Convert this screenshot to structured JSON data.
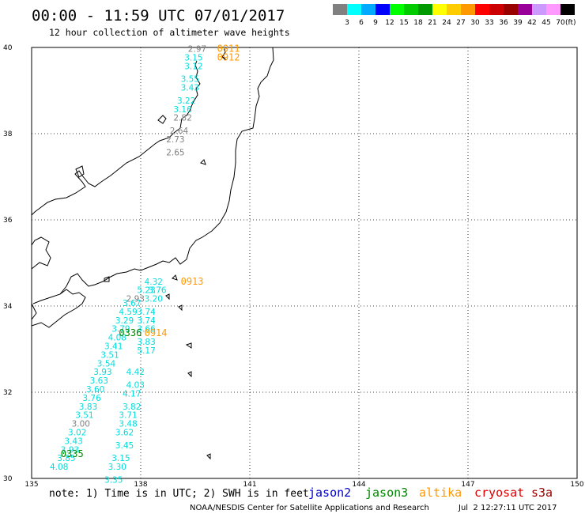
{
  "header": {
    "title": "00:00 - 11:59 UTC 07/01/2017",
    "subtitle": "12 hour collection of altimeter wave heights"
  },
  "legend": {
    "unit": "(ft)",
    "bins": [
      {
        "color": "#808080",
        "label": "3"
      },
      {
        "color": "#00ffff",
        "label": "6"
      },
      {
        "color": "#00aaff",
        "label": "9"
      },
      {
        "color": "#0000ff",
        "label": "12"
      },
      {
        "color": "#00ff00",
        "label": "15"
      },
      {
        "color": "#00cc00",
        "label": "18"
      },
      {
        "color": "#009900",
        "label": "21"
      },
      {
        "color": "#ffff00",
        "label": "24"
      },
      {
        "color": "#ffcc00",
        "label": "27"
      },
      {
        "color": "#ff9900",
        "label": "30"
      },
      {
        "color": "#ff0000",
        "label": "33"
      },
      {
        "color": "#cc0000",
        "label": "36"
      },
      {
        "color": "#990000",
        "label": "39"
      },
      {
        "color": "#990099",
        "label": "42"
      },
      {
        "color": "#cc99ff",
        "label": "45"
      },
      {
        "color": "#ff99ff",
        "label": "70"
      },
      {
        "color": "#000000",
        "label": ""
      }
    ]
  },
  "map": {
    "lon_range": [
      135,
      150
    ],
    "lat_range": [
      30,
      40
    ],
    "lon_ticks": [
      "135",
      "138",
      "141",
      "144",
      "147",
      "150"
    ],
    "lat_ticks": [
      "30",
      "32",
      "34",
      "36",
      "38",
      "40"
    ]
  },
  "colors": {
    "swh_low": "#808080",
    "swh_mid": "#00dddd",
    "jason2": "#0000cc",
    "jason3": "#008800",
    "altika": "#ff9900",
    "cryosat": "#dd0000",
    "s3a": "#990000"
  },
  "tracks": [
    {
      "sat": "altika",
      "time": "0911",
      "lon": 140.1,
      "lat": 39.9
    },
    {
      "sat": "altika",
      "time": "0912",
      "lon": 140.1,
      "lat": 39.7
    },
    {
      "sat": "altika",
      "time": "0913",
      "lon": 139.1,
      "lat": 34.5
    },
    {
      "sat": "altika",
      "time": "0914",
      "lon": 138.1,
      "lat": 33.3
    },
    {
      "sat": "jason3",
      "time": "0336",
      "lon": 137.4,
      "lat": 33.3
    },
    {
      "sat": "jason3",
      "time": "0335",
      "lon": 135.8,
      "lat": 30.5
    }
  ],
  "swh_values": [
    {
      "v": "2.97",
      "lon": 139.3,
      "lat": 39.9,
      "c": "swh_low"
    },
    {
      "v": "3.15",
      "lon": 139.2,
      "lat": 39.7,
      "c": "swh_mid"
    },
    {
      "v": "3.12",
      "lon": 139.2,
      "lat": 39.5,
      "c": "swh_mid"
    },
    {
      "v": "3.55",
      "lon": 139.1,
      "lat": 39.2,
      "c": "swh_mid"
    },
    {
      "v": "3.43",
      "lon": 139.1,
      "lat": 39.0,
      "c": "swh_mid"
    },
    {
      "v": "3.22",
      "lon": 139.0,
      "lat": 38.7,
      "c": "swh_mid"
    },
    {
      "v": "3.16",
      "lon": 138.9,
      "lat": 38.5,
      "c": "swh_mid"
    },
    {
      "v": "2.82",
      "lon": 138.9,
      "lat": 38.3,
      "c": "swh_low"
    },
    {
      "v": "2.64",
      "lon": 138.8,
      "lat": 38.0,
      "c": "swh_low"
    },
    {
      "v": "2.73",
      "lon": 138.7,
      "lat": 37.8,
      "c": "swh_low"
    },
    {
      "v": "2.65",
      "lon": 138.7,
      "lat": 37.5,
      "c": "swh_low"
    },
    {
      "v": "4.32",
      "lon": 138.1,
      "lat": 34.5,
      "c": "swh_mid"
    },
    {
      "v": "5.23",
      "lon": 137.9,
      "lat": 34.3,
      "c": "swh_mid"
    },
    {
      "v": "3.76",
      "lon": 138.2,
      "lat": 34.3,
      "c": "swh_mid"
    },
    {
      "v": "2.93",
      "lon": 137.6,
      "lat": 34.1,
      "c": "swh_low"
    },
    {
      "v": "3.20",
      "lon": 138.1,
      "lat": 34.1,
      "c": "swh_mid"
    },
    {
      "v": "3.67",
      "lon": 137.5,
      "lat": 34.0,
      "c": "swh_mid"
    },
    {
      "v": "4.59",
      "lon": 137.4,
      "lat": 33.8,
      "c": "swh_mid"
    },
    {
      "v": "3.74",
      "lon": 137.9,
      "lat": 33.8,
      "c": "swh_mid"
    },
    {
      "v": "3.29",
      "lon": 137.3,
      "lat": 33.6,
      "c": "swh_mid"
    },
    {
      "v": "3.74",
      "lon": 137.9,
      "lat": 33.6,
      "c": "swh_mid"
    },
    {
      "v": "3.79",
      "lon": 137.2,
      "lat": 33.4,
      "c": "swh_mid"
    },
    {
      "v": "3.66",
      "lon": 137.9,
      "lat": 33.4,
      "c": "swh_mid"
    },
    {
      "v": "4.08",
      "lon": 137.1,
      "lat": 33.2,
      "c": "swh_mid"
    },
    {
      "v": "3.83",
      "lon": 137.9,
      "lat": 33.1,
      "c": "swh_mid"
    },
    {
      "v": "3.41",
      "lon": 137.0,
      "lat": 33.0,
      "c": "swh_mid"
    },
    {
      "v": "5.17",
      "lon": 137.9,
      "lat": 32.9,
      "c": "swh_mid"
    },
    {
      "v": "3.51",
      "lon": 136.9,
      "lat": 32.8,
      "c": "swh_mid"
    },
    {
      "v": "3.54",
      "lon": 136.8,
      "lat": 32.6,
      "c": "swh_mid"
    },
    {
      "v": "3.93",
      "lon": 136.7,
      "lat": 32.4,
      "c": "swh_mid"
    },
    {
      "v": "4.42",
      "lon": 137.6,
      "lat": 32.4,
      "c": "swh_mid"
    },
    {
      "v": "3.63",
      "lon": 136.6,
      "lat": 32.2,
      "c": "swh_mid"
    },
    {
      "v": "4.03",
      "lon": 137.6,
      "lat": 32.1,
      "c": "swh_mid"
    },
    {
      "v": "3.60",
      "lon": 136.5,
      "lat": 32.0,
      "c": "swh_mid"
    },
    {
      "v": "4.17",
      "lon": 137.5,
      "lat": 31.9,
      "c": "swh_mid"
    },
    {
      "v": "3.76",
      "lon": 136.4,
      "lat": 31.8,
      "c": "swh_mid"
    },
    {
      "v": "3.83",
      "lon": 136.3,
      "lat": 31.6,
      "c": "swh_mid"
    },
    {
      "v": "3.82",
      "lon": 137.5,
      "lat": 31.6,
      "c": "swh_mid"
    },
    {
      "v": "3.51",
      "lon": 136.2,
      "lat": 31.4,
      "c": "swh_mid"
    },
    {
      "v": "3.71",
      "lon": 137.4,
      "lat": 31.4,
      "c": "swh_mid"
    },
    {
      "v": "3.00",
      "lon": 136.1,
      "lat": 31.2,
      "c": "swh_low"
    },
    {
      "v": "3.48",
      "lon": 137.4,
      "lat": 31.2,
      "c": "swh_mid"
    },
    {
      "v": "3.02",
      "lon": 136.0,
      "lat": 31.0,
      "c": "swh_mid"
    },
    {
      "v": "3.62",
      "lon": 137.3,
      "lat": 31.0,
      "c": "swh_mid"
    },
    {
      "v": "3.43",
      "lon": 135.9,
      "lat": 30.8,
      "c": "swh_mid"
    },
    {
      "v": "3.93",
      "lon": 135.8,
      "lat": 30.6,
      "c": "swh_mid"
    },
    {
      "v": "3.45",
      "lon": 137.3,
      "lat": 30.7,
      "c": "swh_mid"
    },
    {
      "v": "3.85",
      "lon": 135.7,
      "lat": 30.4,
      "c": "swh_mid"
    },
    {
      "v": "3.15",
      "lon": 137.2,
      "lat": 30.4,
      "c": "swh_mid"
    },
    {
      "v": "4.08",
      "lon": 135.5,
      "lat": 30.2,
      "c": "swh_mid"
    },
    {
      "v": "3.30",
      "lon": 137.1,
      "lat": 30.2,
      "c": "swh_mid"
    },
    {
      "v": "3.35",
      "lon": 137.0,
      "lat": 29.9,
      "c": "swh_mid"
    }
  ],
  "footer": {
    "note": "note: 1) Time is in UTC; 2) SWH is in feet",
    "satellites": [
      {
        "name": "jason2",
        "color_key": "jason2"
      },
      {
        "name": "jason3",
        "color_key": "jason3"
      },
      {
        "name": "altika",
        "color_key": "altika"
      },
      {
        "name": "cryosat",
        "color_key": "cryosat"
      },
      {
        "name": "s3a",
        "color_key": "s3a"
      }
    ],
    "credit": "NOAA/NESDIS Center for Satellite Applications and Research",
    "timestamp": "Jul  2 12:27:11 UTC 2017"
  }
}
